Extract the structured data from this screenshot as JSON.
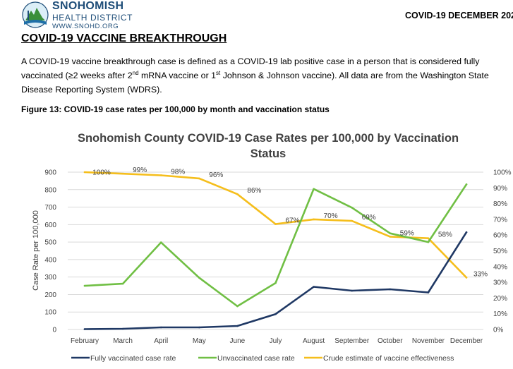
{
  "header": {
    "org_line1": "SNOHOMISH",
    "org_line2": "HEALTH DISTRICT",
    "org_url": "WWW.SNOHD.ORG",
    "report_date": "COVID-19 DECEMBER 202"
  },
  "page_title": "COVID-19 VACCINE BREAKTHROUGH",
  "intro": {
    "p1": "A COVID-19 vaccine breakthrough case is defined as a COVID-19 lab positive case in a person that is considered fully",
    "p2a": "vaccinated (≥2 weeks after 2",
    "sup_nd": "nd",
    "p2b": " mRNA vaccine or 1",
    "sup_st": "st",
    "p2c": " Johnson & Johnson vaccine).  All data are from the Washington State",
    "p3": "Disease Reporting System (WDRS)."
  },
  "figure_caption": "Figure 13: COVID-19 case rates per 100,000 by month and vaccination status",
  "colors": {
    "fully": "#1f3864",
    "unvaccinated": "#70bf44",
    "effectiveness": "#f5be1c",
    "grid": "#d9d9d9",
    "brand": "#1f4e79"
  },
  "chart_data": {
    "type": "line",
    "title_line1": "Snohomish County COVID-19 Case Rates per 100,000 by Vaccination",
    "title_line2": "Status",
    "categories": [
      "February",
      "March",
      "April",
      "May",
      "June",
      "July",
      "August",
      "September",
      "October",
      "November",
      "December"
    ],
    "ylabel": "Case Rate per 100,000",
    "ylim": [
      0,
      900
    ],
    "yticks": [
      0,
      100,
      200,
      300,
      400,
      500,
      600,
      700,
      800,
      900
    ],
    "y2lim": [
      0,
      100
    ],
    "y2ticks": [
      "0%",
      "10%",
      "20%",
      "30%",
      "40%",
      "50%",
      "60%",
      "70%",
      "80%",
      "90%",
      "100%"
    ],
    "series": [
      {
        "name": "Fully vaccinated case rate",
        "axis": "left",
        "values": [
          2,
          4,
          12,
          12,
          20,
          88,
          244,
          222,
          230,
          212,
          556
        ]
      },
      {
        "name": "Unvaccinated case rate",
        "axis": "left",
        "values": [
          250,
          262,
          498,
          296,
          133,
          266,
          804,
          697,
          550,
          500,
          830
        ]
      },
      {
        "name": "Crude estimate of vaccine effectiveness",
        "axis": "right",
        "values": [
          100,
          99,
          98,
          96,
          86,
          67,
          70,
          69,
          59,
          58,
          33
        ],
        "labels": [
          "100%",
          "99%",
          "98%",
          "96%",
          "86%",
          "67%",
          "70%",
          "69%",
          "59%",
          "58%",
          "33%"
        ]
      }
    ],
    "legend_position": "bottom",
    "grid": true
  }
}
